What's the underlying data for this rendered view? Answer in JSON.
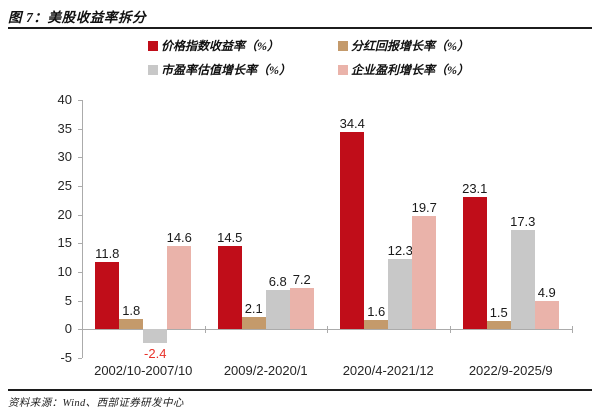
{
  "header": {
    "title": "图 7：美股收益率拆分"
  },
  "footer": {
    "source": "资料来源：Wind、西部证券研发中心"
  },
  "chart_data": {
    "type": "bar",
    "title": "图 7：美股收益率拆分",
    "categories": [
      "2002/10-2007/10",
      "2009/2-2020/1",
      "2020/4-2021/12",
      "2022/9-2025/9"
    ],
    "series": [
      {
        "name": "价格指数收益率（%）",
        "color": "#c00d19",
        "values": [
          11.8,
          14.5,
          34.4,
          23.1
        ]
      },
      {
        "name": "分红回报增长率（%）",
        "color": "#c49a6b",
        "values": [
          1.8,
          2.1,
          1.6,
          1.5
        ]
      },
      {
        "name": "市盈率估值增长率（%）",
        "color": "#c8c8c8",
        "values": [
          -2.4,
          6.8,
          12.3,
          17.3
        ]
      },
      {
        "name": "企业盈利增长率（%）",
        "color": "#eab3aa",
        "values": [
          14.6,
          7.2,
          19.7,
          4.9
        ]
      }
    ],
    "ylim": [
      -5,
      40
    ],
    "ytick_step": 5,
    "grid": false,
    "legend_position": "top",
    "value_labels": true,
    "colors": {
      "axis": "#ababab",
      "label": "#262626",
      "negative_label": "#e8322a"
    },
    "xlabel": "",
    "ylabel": ""
  }
}
